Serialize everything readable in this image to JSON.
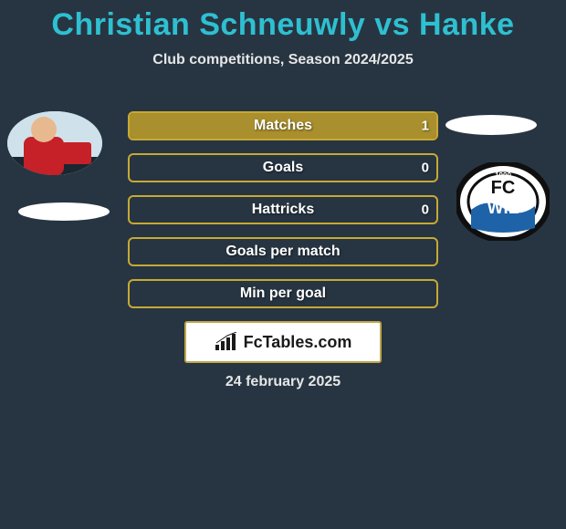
{
  "title": "Christian Schneuwly vs Hanke",
  "subtitle": "Club competitions, Season 2024/2025",
  "footer_date": "24 february 2025",
  "colors": {
    "background": "#273542",
    "title": "#2ec0d1",
    "bar_border": "#c7a933",
    "bar_fill": "#7d6f2a",
    "bar_full": "#a98f2d",
    "text": "#ffffff"
  },
  "avatars": {
    "left_player": {
      "bg": "#cfe2eb",
      "shirt": "#c62128",
      "skin": "#e8b98f",
      "shadow": "#1a2630"
    },
    "right_club": {
      "ring": "#0f0f0f",
      "inner": "#ffffff",
      "wave": "#1e63a8",
      "text_top": "FC",
      "text_bottom": "WIL",
      "year": "1900"
    }
  },
  "bars": [
    {
      "label": "Matches",
      "value": "1",
      "fill_pct": 100
    },
    {
      "label": "Goals",
      "value": "0",
      "fill_pct": 0
    },
    {
      "label": "Hattricks",
      "value": "0",
      "fill_pct": 0
    },
    {
      "label": "Goals per match",
      "value": "",
      "fill_pct": 0
    },
    {
      "label": "Min per goal",
      "value": "",
      "fill_pct": 0
    }
  ],
  "plaque": {
    "text": "FcTables.com"
  }
}
